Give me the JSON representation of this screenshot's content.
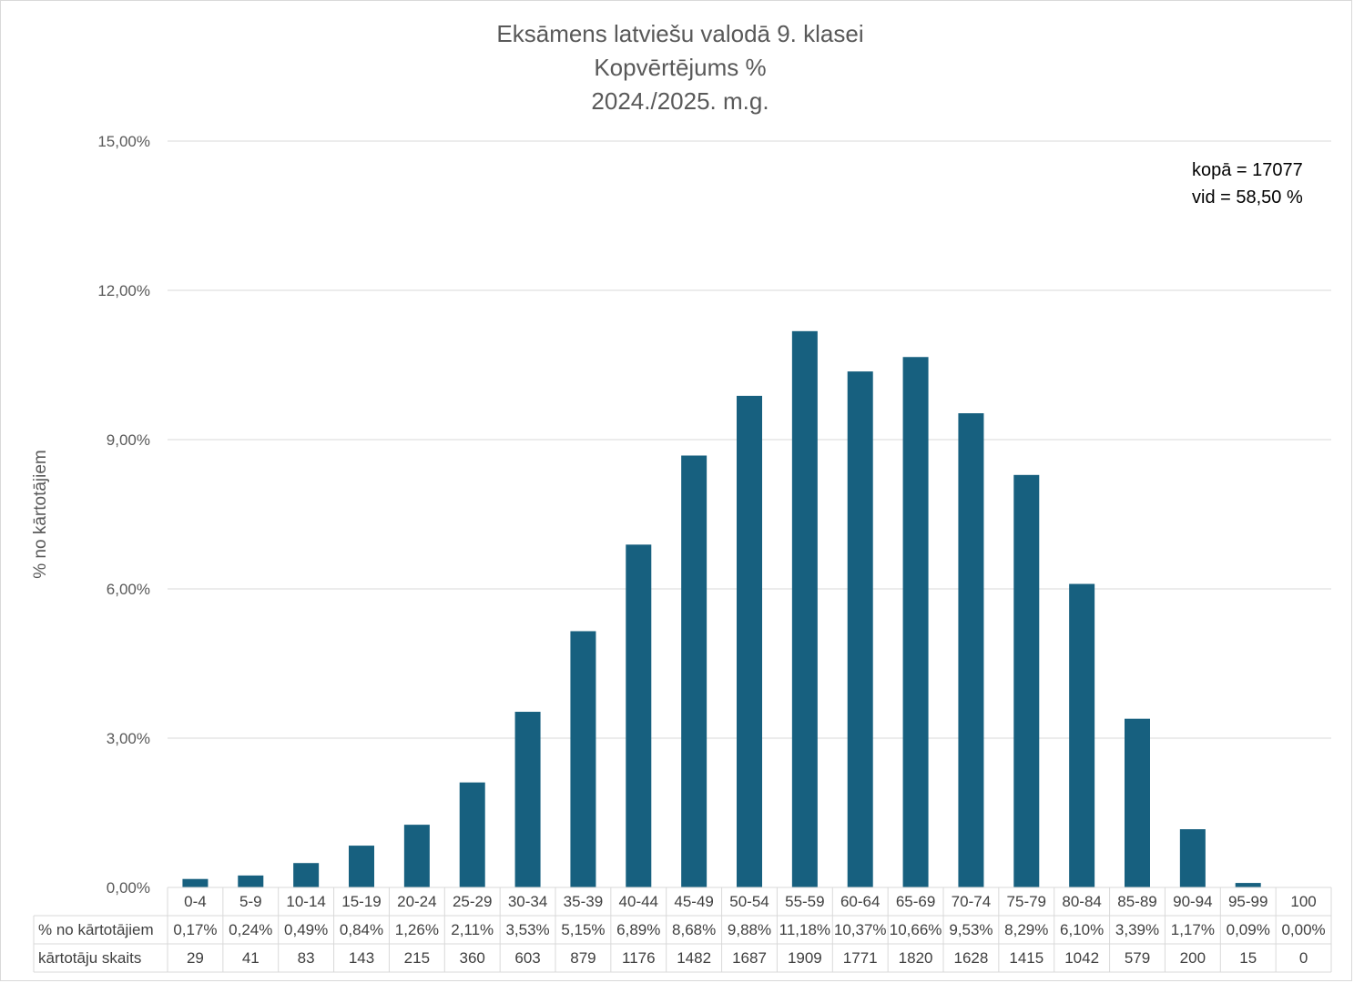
{
  "chart_data": {
    "type": "bar",
    "title": [
      "Eksāmens latviešu valodā 9. klasei",
      "Kopvērtējums %",
      "2024./2025. m.g."
    ],
    "ylabel": "% no kārtotājiem",
    "ylim": [
      0,
      15
    ],
    "yticks": [
      0,
      3,
      6,
      9,
      12,
      15
    ],
    "ytick_labels": [
      "0,00%",
      "3,00%",
      "6,00%",
      "9,00%",
      "12,00%",
      "15,00%"
    ],
    "grid": true,
    "bar_color": "#17607f",
    "categories": [
      "0-4",
      "5-9",
      "10-14",
      "15-19",
      "20-24",
      "25-29",
      "30-34",
      "35-39",
      "40-44",
      "45-49",
      "50-54",
      "55-59",
      "60-64",
      "65-69",
      "70-74",
      "75-79",
      "80-84",
      "85-89",
      "90-94",
      "95-99",
      "100"
    ],
    "values": [
      0.17,
      0.24,
      0.49,
      0.84,
      1.26,
      2.11,
      3.53,
      5.15,
      6.89,
      8.68,
      9.88,
      11.18,
      10.37,
      10.66,
      9.53,
      8.29,
      6.1,
      3.39,
      1.17,
      0.09,
      0.0
    ],
    "table": {
      "rows": [
        {
          "label": "% no kārtotājiem",
          "cells": [
            "0,17%",
            "0,24%",
            "0,49%",
            "0,84%",
            "1,26%",
            "2,11%",
            "3,53%",
            "5,15%",
            "6,89%",
            "8,68%",
            "9,88%",
            "11,18%",
            "10,37%",
            "10,66%",
            "9,53%",
            "8,29%",
            "6,10%",
            "3,39%",
            "1,17%",
            "0,09%",
            "0,00%"
          ]
        },
        {
          "label": "kārtotāju skaits",
          "cells": [
            "29",
            "41",
            "83",
            "143",
            "215",
            "360",
            "603",
            "879",
            "1176",
            "1482",
            "1687",
            "1909",
            "1771",
            "1820",
            "1628",
            "1415",
            "1042",
            "579",
            "200",
            "15",
            "0"
          ]
        }
      ]
    },
    "annotations": [
      "kopā = 17077",
      "vid = 58,50 %"
    ]
  }
}
